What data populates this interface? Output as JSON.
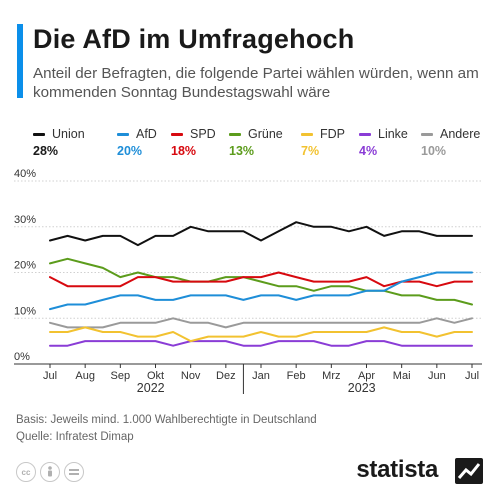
{
  "header": {
    "title": "Die AfD im Umfragehoch",
    "subtitle": "Anteil der Befragten, die folgende Partei wählen würden, wenn am kommenden Sonntag Bundestagswahl wäre"
  },
  "colors": {
    "accent": "#0b8fea",
    "grid": "#d0d0d0"
  },
  "chart_data": {
    "type": "line",
    "x_labels": [
      "Jul",
      "Aug",
      "Sep",
      "Okt",
      "Nov",
      "Dez",
      "Jan",
      "Feb",
      "Mrz",
      "Apr",
      "Mai",
      "Jun",
      "Jul"
    ],
    "year_labels": [
      "2022",
      "2023"
    ],
    "y_ticks": [
      "40%",
      "30%",
      "20%",
      "10%",
      "0%"
    ],
    "ylim": [
      0,
      40
    ],
    "y_unit": "%",
    "grid": true,
    "legend_position": "top",
    "x": [
      0,
      0.5,
      1,
      1.5,
      2,
      2.5,
      3,
      3.5,
      4,
      4.5,
      5,
      5.5,
      6,
      6.5,
      7,
      7.5,
      8,
      8.5,
      9,
      9.5,
      10,
      10.5,
      11,
      11.5,
      12
    ],
    "series": [
      {
        "name": "Union",
        "label": "28%",
        "color": "#111111",
        "values": [
          27,
          28,
          27,
          28,
          28,
          26,
          28,
          28,
          30,
          29,
          29,
          29,
          27,
          29,
          31,
          30,
          30,
          29,
          30,
          28,
          29,
          29,
          28,
          28,
          28
        ]
      },
      {
        "name": "AfD",
        "label": "20%",
        "color": "#1e8ed8",
        "values": [
          12,
          13,
          13,
          14,
          15,
          15,
          14,
          14,
          15,
          15,
          15,
          14,
          15,
          15,
          14,
          15,
          15,
          15,
          16,
          16,
          18,
          19,
          20,
          20,
          20
        ]
      },
      {
        "name": "SPD",
        "label": "18%",
        "color": "#d7090f",
        "values": [
          19,
          17,
          17,
          17,
          17,
          19,
          19,
          18,
          18,
          18,
          18,
          19,
          19,
          20,
          19,
          18,
          18,
          18,
          19,
          17,
          18,
          18,
          17,
          18,
          18
        ]
      },
      {
        "name": "Grüne",
        "label": "13%",
        "color": "#5c9c1c",
        "values": [
          22,
          23,
          22,
          21,
          19,
          20,
          19,
          19,
          18,
          18,
          19,
          19,
          18,
          17,
          17,
          16,
          17,
          17,
          16,
          16,
          15,
          15,
          14,
          14,
          13
        ]
      },
      {
        "name": "FDP",
        "label": "7%",
        "color": "#f2c230",
        "values": [
          7,
          7,
          8,
          7,
          7,
          6,
          6,
          7,
          5,
          6,
          6,
          6,
          7,
          6,
          6,
          7,
          7,
          7,
          7,
          8,
          7,
          7,
          6,
          7,
          7
        ]
      },
      {
        "name": "Linke",
        "label": "4%",
        "color": "#8a3cd6",
        "values": [
          4,
          4,
          5,
          5,
          5,
          5,
          5,
          4,
          5,
          5,
          5,
          4,
          4,
          5,
          5,
          5,
          4,
          4,
          5,
          5,
          4,
          4,
          4,
          4,
          4
        ]
      },
      {
        "name": "Andere",
        "label": "10%",
        "color": "#9a9a9a",
        "values": [
          9,
          8,
          8,
          8,
          9,
          9,
          9,
          10,
          9,
          9,
          8,
          9,
          9,
          9,
          9,
          9,
          9,
          9,
          9,
          9,
          9,
          9,
          10,
          9,
          10
        ]
      }
    ]
  },
  "footer": {
    "basis": "Basis: Jeweils mind. 1.000 Wahlberechtigte in Deutschland",
    "source": "Quelle: Infratest Dimap",
    "brand": "statista",
    "license_icons": [
      "cc",
      "by",
      "nd"
    ]
  }
}
